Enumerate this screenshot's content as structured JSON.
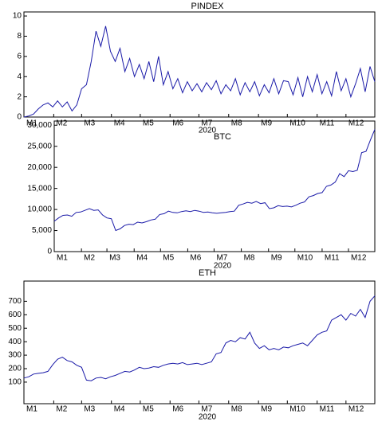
{
  "chart_data": [
    {
      "type": "line",
      "title": "PINDEX",
      "xlabel": "2020",
      "color": "#1a1aa8",
      "xlim": [
        1,
        366
      ],
      "ylim": [
        0,
        10.4
      ],
      "yticks": [
        0,
        2,
        4,
        6,
        8,
        10
      ],
      "xticks": [
        {
          "value": 1,
          "label": "M1"
        },
        {
          "value": 32,
          "label": "M2"
        },
        {
          "value": 61,
          "label": "M3"
        },
        {
          "value": 92,
          "label": "M4"
        },
        {
          "value": 122,
          "label": "M5"
        },
        {
          "value": 153,
          "label": "M6"
        },
        {
          "value": 183,
          "label": "M7"
        },
        {
          "value": 214,
          "label": "M8"
        },
        {
          "value": 245,
          "label": "M9"
        },
        {
          "value": 275,
          "label": "M10"
        },
        {
          "value": 306,
          "label": "M11"
        },
        {
          "value": 336,
          "label": "M12"
        }
      ],
      "x": [
        1,
        6,
        11,
        16,
        21,
        26,
        31,
        36,
        41,
        46,
        51,
        56,
        61,
        66,
        71,
        76,
        81,
        86,
        91,
        96,
        101,
        106,
        111,
        116,
        121,
        126,
        131,
        136,
        141,
        146,
        151,
        156,
        161,
        166,
        171,
        176,
        181,
        186,
        191,
        196,
        201,
        206,
        211,
        216,
        221,
        226,
        231,
        236,
        241,
        246,
        251,
        256,
        261,
        266,
        271,
        276,
        281,
        286,
        291,
        296,
        301,
        306,
        311,
        316,
        321,
        326,
        331,
        336,
        341,
        346,
        351,
        356,
        361,
        366
      ],
      "values": [
        0,
        0.1,
        0.3,
        0.8,
        1.2,
        1.4,
        1.0,
        1.6,
        1.0,
        1.5,
        0.6,
        1.2,
        2.8,
        3.2,
        5.5,
        8.5,
        7,
        9,
        6.5,
        5.5,
        6.8,
        4.5,
        5.8,
        4,
        5.2,
        3.8,
        5.5,
        3.5,
        6,
        3.2,
        4.5,
        2.8,
        3.8,
        2.4,
        3.5,
        2.6,
        3.3,
        2.5,
        3.4,
        2.7,
        3.6,
        2.3,
        3.2,
        2.6,
        3.8,
        2.2,
        3.4,
        2.5,
        3.5,
        2.1,
        3.2,
        2.4,
        3.8,
        2.3,
        3.6,
        3.5,
        2.2,
        3.9,
        2.0,
        4.0,
        2.5,
        4.2,
        2.3,
        3.5,
        2.1,
        4.5,
        2.6,
        3.8,
        2.0,
        3.3,
        4.8,
        2.5,
        5.0,
        3.5
      ]
    },
    {
      "type": "line",
      "title": "BTC",
      "xlabel": "2020",
      "color": "#1a1aa8",
      "xlim": [
        1,
        366
      ],
      "ylim": [
        0,
        31000
      ],
      "yticks": [
        0,
        {
          "value": 5000,
          "label": "5,000"
        },
        {
          "value": 10000,
          "label": "10,000"
        },
        {
          "value": 15000,
          "label": "15,000"
        },
        {
          "value": 20000,
          "label": "20,000"
        },
        {
          "value": 25000,
          "label": "25,000"
        },
        {
          "value": 30000,
          "label": "30,000"
        }
      ],
      "xticks": [
        {
          "value": 1,
          "label": "M1"
        },
        {
          "value": 32,
          "label": "M2"
        },
        {
          "value": 61,
          "label": "M3"
        },
        {
          "value": 92,
          "label": "M4"
        },
        {
          "value": 122,
          "label": "M5"
        },
        {
          "value": 153,
          "label": "M6"
        },
        {
          "value": 183,
          "label": "M7"
        },
        {
          "value": 214,
          "label": "M8"
        },
        {
          "value": 245,
          "label": "M9"
        },
        {
          "value": 275,
          "label": "M10"
        },
        {
          "value": 306,
          "label": "M11"
        },
        {
          "value": 336,
          "label": "M12"
        }
      ],
      "x": [
        1,
        6,
        11,
        16,
        21,
        26,
        31,
        36,
        41,
        46,
        51,
        56,
        61,
        66,
        71,
        76,
        81,
        86,
        91,
        96,
        101,
        106,
        111,
        116,
        121,
        126,
        131,
        136,
        141,
        146,
        151,
        156,
        161,
        166,
        171,
        176,
        181,
        186,
        191,
        196,
        201,
        206,
        211,
        216,
        221,
        226,
        231,
        236,
        241,
        246,
        251,
        256,
        261,
        266,
        271,
        276,
        281,
        286,
        291,
        296,
        301,
        306,
        311,
        316,
        321,
        326,
        331,
        336,
        341,
        346,
        351,
        356,
        361,
        366
      ],
      "values": [
        7200,
        8000,
        8600,
        8700,
        8400,
        9300,
        9400,
        9800,
        10200,
        9800,
        9900,
        8700,
        8000,
        7800,
        5000,
        5400,
        6200,
        6500,
        6400,
        7000,
        6800,
        7100,
        7500,
        7700,
        8800,
        9000,
        9600,
        9300,
        9200,
        9500,
        9700,
        9500,
        9800,
        9600,
        9300,
        9400,
        9200,
        9100,
        9200,
        9300,
        9500,
        9600,
        11000,
        11300,
        11700,
        11500,
        11900,
        11400,
        11600,
        10200,
        10400,
        10900,
        10700,
        10800,
        10600,
        11000,
        11500,
        11800,
        13000,
        13300,
        13800,
        14000,
        15500,
        15800,
        16500,
        18500,
        17800,
        19200,
        19000,
        19300,
        23500,
        23800,
        26500,
        29000
      ]
    },
    {
      "type": "line",
      "title": "ETH",
      "xlabel": "2020",
      "color": "#1a1aa8",
      "xlim": [
        1,
        366
      ],
      "ylim": [
        -60,
        850
      ],
      "yticks": [
        100,
        200,
        300,
        400,
        500,
        600,
        700
      ],
      "xticks": [
        {
          "value": 1,
          "label": "M1"
        },
        {
          "value": 32,
          "label": "M2"
        },
        {
          "value": 61,
          "label": "M3"
        },
        {
          "value": 92,
          "label": "M4"
        },
        {
          "value": 122,
          "label": "M5"
        },
        {
          "value": 153,
          "label": "M6"
        },
        {
          "value": 183,
          "label": "M7"
        },
        {
          "value": 214,
          "label": "M8"
        },
        {
          "value": 245,
          "label": "M9"
        },
        {
          "value": 275,
          "label": "M10"
        },
        {
          "value": 306,
          "label": "M11"
        },
        {
          "value": 336,
          "label": "M12"
        }
      ],
      "x": [
        1,
        6,
        11,
        16,
        21,
        26,
        31,
        36,
        41,
        46,
        51,
        56,
        61,
        66,
        71,
        76,
        81,
        86,
        91,
        96,
        101,
        106,
        111,
        116,
        121,
        126,
        131,
        136,
        141,
        146,
        151,
        156,
        161,
        166,
        171,
        176,
        181,
        186,
        191,
        196,
        201,
        206,
        211,
        216,
        221,
        226,
        231,
        236,
        241,
        246,
        251,
        256,
        261,
        266,
        271,
        276,
        281,
        286,
        291,
        296,
        301,
        306,
        311,
        316,
        321,
        326,
        331,
        336,
        341,
        346,
        351,
        356,
        361,
        366
      ],
      "values": [
        130,
        140,
        160,
        165,
        170,
        180,
        230,
        270,
        285,
        260,
        250,
        225,
        210,
        115,
        110,
        130,
        135,
        125,
        140,
        150,
        165,
        180,
        175,
        190,
        210,
        200,
        205,
        215,
        210,
        225,
        235,
        240,
        235,
        245,
        230,
        235,
        240,
        230,
        240,
        250,
        310,
        320,
        390,
        410,
        400,
        430,
        420,
        470,
        390,
        350,
        370,
        340,
        350,
        340,
        360,
        355,
        370,
        380,
        390,
        370,
        410,
        450,
        470,
        480,
        560,
        580,
        600,
        560,
        610,
        590,
        640,
        580,
        700,
        740
      ]
    }
  ]
}
